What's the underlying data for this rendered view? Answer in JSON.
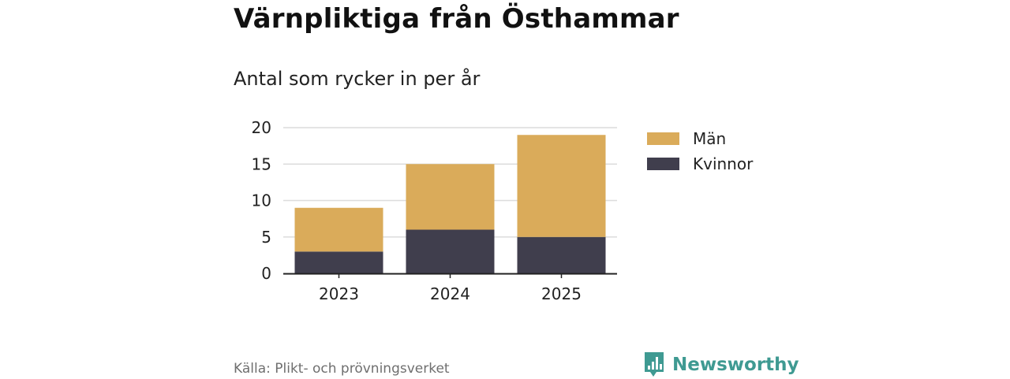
{
  "header": {
    "title": "Värnpliktiga från Östhammar",
    "subtitle": "Antal som rycker in per år"
  },
  "chart_data": {
    "type": "bar",
    "stacked": true,
    "categories": [
      "2023",
      "2024",
      "2025"
    ],
    "series": [
      {
        "name": "Kvinnor",
        "values": [
          3,
          6,
          5
        ],
        "color": "#403e4d"
      },
      {
        "name": "Män",
        "values": [
          6,
          9,
          14
        ],
        "color": "#daab5a"
      }
    ],
    "legend_order": [
      "Män",
      "Kvinnor"
    ],
    "legend_position": "right",
    "ylim": [
      0,
      20
    ],
    "yticks": [
      0,
      5,
      10,
      15,
      20
    ],
    "grid": true,
    "title": "Värnpliktiga från Östhammar",
    "subtitle": "Antal som rycker in per år",
    "xlabel": "",
    "ylabel": ""
  },
  "footer": {
    "source": "Källa: Plikt- och prövningsverket",
    "brand": "Newsworthy",
    "brand_color": "#3f9a92"
  },
  "icons": {
    "brand_logo": "newsworthy-logo-icon"
  }
}
